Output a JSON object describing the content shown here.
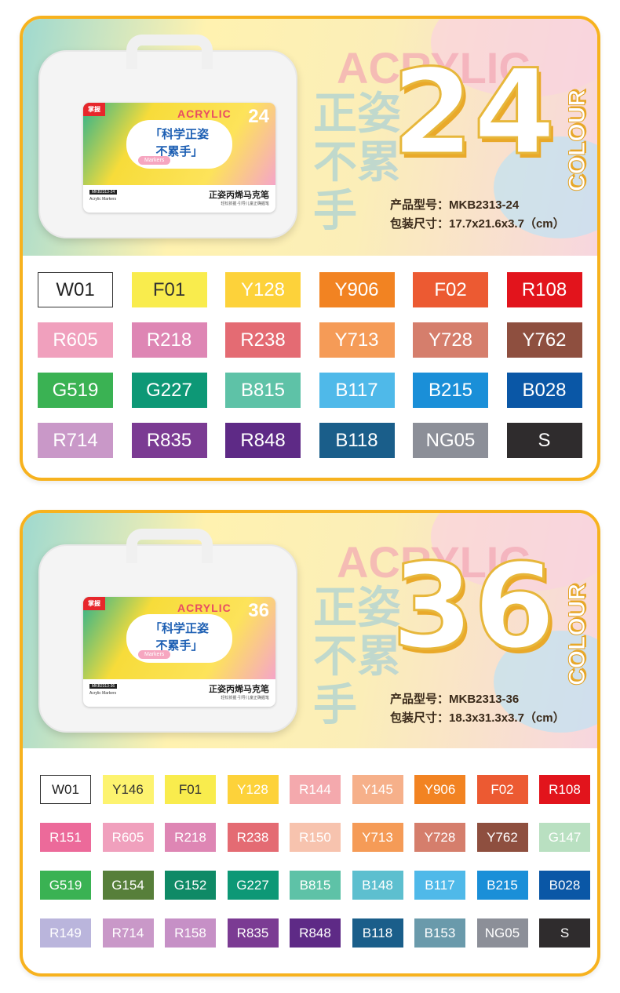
{
  "sets": [
    {
      "count": "24",
      "colour": "COLOUR",
      "slogan": "正姿不累手",
      "model_label": "产品型号：",
      "model": "MKB2313-24",
      "size_label": "包装尺寸：",
      "size": "17.7x21.6x3.7（cm）",
      "box": {
        "brand": "掌握",
        "acrylic": "ACRYLIC",
        "cloud1": "「科学正姿",
        "cloud2": "不累手」",
        "markers": "Markers",
        "model": "MKB2313-24",
        "sub": "Acrylic Markers",
        "title": "正姿丙烯马克笔",
        "tagline": "轻松抓握·引导儿童正确握笔"
      },
      "swatches": [
        {
          "code": "W01",
          "color": "#ffffff",
          "text": "#222222"
        },
        {
          "code": "F01",
          "color": "#f9ec4d",
          "text": "#333333"
        },
        {
          "code": "Y128",
          "color": "#fdd23a",
          "text": "#ffffff"
        },
        {
          "code": "Y906",
          "color": "#f28322",
          "text": "#ffffff"
        },
        {
          "code": "F02",
          "color": "#ec5a32",
          "text": "#ffffff"
        },
        {
          "code": "R108",
          "color": "#e2141c",
          "text": "#ffffff"
        },
        {
          "code": "R605",
          "color": "#f0a0bd",
          "text": "#ffffff"
        },
        {
          "code": "R218",
          "color": "#de86b4",
          "text": "#ffffff"
        },
        {
          "code": "R238",
          "color": "#e46b73",
          "text": "#ffffff"
        },
        {
          "code": "Y713",
          "color": "#f59b57",
          "text": "#ffffff"
        },
        {
          "code": "Y728",
          "color": "#d57e6c",
          "text": "#ffffff"
        },
        {
          "code": "Y762",
          "color": "#8e4f3f",
          "text": "#ffffff"
        },
        {
          "code": "G519",
          "color": "#3ab253",
          "text": "#ffffff"
        },
        {
          "code": "G227",
          "color": "#0d9876",
          "text": "#ffffff"
        },
        {
          "code": "B815",
          "color": "#5ec2a7",
          "text": "#ffffff"
        },
        {
          "code": "B117",
          "color": "#4fb9e9",
          "text": "#ffffff"
        },
        {
          "code": "B215",
          "color": "#1a8fd8",
          "text": "#ffffff"
        },
        {
          "code": "B028",
          "color": "#0a57a6",
          "text": "#ffffff"
        },
        {
          "code": "R714",
          "color": "#c998c8",
          "text": "#ffffff"
        },
        {
          "code": "R835",
          "color": "#7b3b93",
          "text": "#ffffff"
        },
        {
          "code": "R848",
          "color": "#5e2a86",
          "text": "#ffffff"
        },
        {
          "code": "B118",
          "color": "#1a5e8a",
          "text": "#ffffff"
        },
        {
          "code": "NG05",
          "color": "#8c8f98",
          "text": "#ffffff"
        },
        {
          "code": "S",
          "color": "#2f2c2d",
          "text": "#ffffff"
        }
      ]
    },
    {
      "count": "36",
      "colour": "COLOUR",
      "slogan": "正姿不累手",
      "model_label": "产品型号：",
      "model": "MKB2313-36",
      "size_label": "包装尺寸：",
      "size": "18.3x31.3x3.7（cm）",
      "box": {
        "brand": "掌握",
        "acrylic": "ACRYLIC",
        "cloud1": "「科学正姿",
        "cloud2": "不累手」",
        "markers": "Markers",
        "model": "MKB2313-36",
        "sub": "Acrylic Markers",
        "title": "正姿丙烯马克笔",
        "tagline": "轻松抓握·引导儿童正确握笔"
      },
      "swatches": [
        {
          "code": "W01",
          "color": "#ffffff",
          "text": "#222222"
        },
        {
          "code": "Y146",
          "color": "#fdf36f",
          "text": "#333333"
        },
        {
          "code": "F01",
          "color": "#f9ec4d",
          "text": "#333333"
        },
        {
          "code": "Y128",
          "color": "#fdd23a",
          "text": "#ffffff"
        },
        {
          "code": "R144",
          "color": "#f4a9ad",
          "text": "#ffffff"
        },
        {
          "code": "Y145",
          "color": "#f6b08a",
          "text": "#ffffff"
        },
        {
          "code": "Y906",
          "color": "#f28322",
          "text": "#ffffff"
        },
        {
          "code": "F02",
          "color": "#ec5a32",
          "text": "#ffffff"
        },
        {
          "code": "R108",
          "color": "#e2141c",
          "text": "#ffffff"
        },
        {
          "code": "R151",
          "color": "#ec6a9a",
          "text": "#ffffff"
        },
        {
          "code": "R605",
          "color": "#f0a0bd",
          "text": "#ffffff"
        },
        {
          "code": "R218",
          "color": "#de86b4",
          "text": "#ffffff"
        },
        {
          "code": "R238",
          "color": "#e46b73",
          "text": "#ffffff"
        },
        {
          "code": "R150",
          "color": "#f7c3ae",
          "text": "#ffffff"
        },
        {
          "code": "Y713",
          "color": "#f59b57",
          "text": "#ffffff"
        },
        {
          "code": "Y728",
          "color": "#d57e6c",
          "text": "#ffffff"
        },
        {
          "code": "Y762",
          "color": "#8e4f3f",
          "text": "#ffffff"
        },
        {
          "code": "G147",
          "color": "#b9e0c1",
          "text": "#ffffff"
        },
        {
          "code": "G519",
          "color": "#3ab253",
          "text": "#ffffff"
        },
        {
          "code": "G154",
          "color": "#577f3a",
          "text": "#ffffff"
        },
        {
          "code": "G152",
          "color": "#0f8a66",
          "text": "#ffffff"
        },
        {
          "code": "G227",
          "color": "#0d9876",
          "text": "#ffffff"
        },
        {
          "code": "B815",
          "color": "#5ec2a7",
          "text": "#ffffff"
        },
        {
          "code": "B148",
          "color": "#5dbfcf",
          "text": "#ffffff"
        },
        {
          "code": "B117",
          "color": "#4fb9e9",
          "text": "#ffffff"
        },
        {
          "code": "B215",
          "color": "#1a8fd8",
          "text": "#ffffff"
        },
        {
          "code": "B028",
          "color": "#0a57a6",
          "text": "#ffffff"
        },
        {
          "code": "R149",
          "color": "#bab5dc",
          "text": "#ffffff"
        },
        {
          "code": "R714",
          "color": "#c998c8",
          "text": "#ffffff"
        },
        {
          "code": "R158",
          "color": "#c690c6",
          "text": "#ffffff"
        },
        {
          "code": "R835",
          "color": "#7b3b93",
          "text": "#ffffff"
        },
        {
          "code": "R848",
          "color": "#5e2a86",
          "text": "#ffffff"
        },
        {
          "code": "B118",
          "color": "#1a5e8a",
          "text": "#ffffff"
        },
        {
          "code": "B153",
          "color": "#6a9aab",
          "text": "#ffffff"
        },
        {
          "code": "NG05",
          "color": "#8c8f98",
          "text": "#ffffff"
        },
        {
          "code": "S",
          "color": "#2f2c2d",
          "text": "#ffffff"
        }
      ]
    }
  ],
  "accent": "#f7b21e"
}
